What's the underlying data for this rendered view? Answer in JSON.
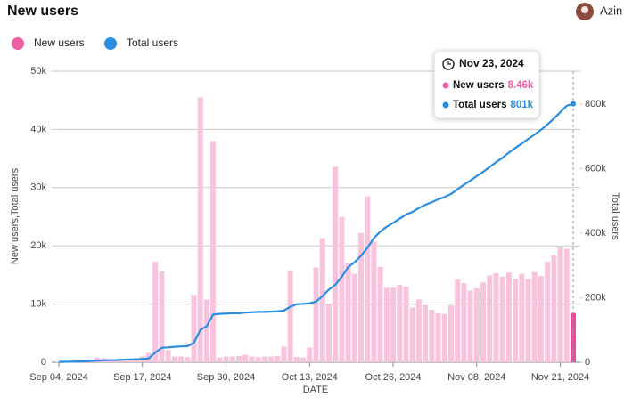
{
  "header": {
    "user": "Azin"
  },
  "chart_data": {
    "type": "bar-line",
    "title": "New users",
    "y_label": "New users,Total users",
    "y2_label": "Total users",
    "x_label": "DATE",
    "categories": [
      "Sep 04, 2024",
      null,
      null,
      null,
      null,
      null,
      null,
      null,
      null,
      null,
      null,
      null,
      null,
      "Sep 17, 2024",
      null,
      null,
      null,
      null,
      null,
      null,
      null,
      null,
      null,
      null,
      null,
      null,
      "Sep 30, 2024",
      null,
      null,
      null,
      null,
      null,
      null,
      null,
      null,
      null,
      null,
      null,
      null,
      "Oct 13, 2024",
      null,
      null,
      null,
      null,
      null,
      null,
      null,
      null,
      null,
      null,
      null,
      null,
      "Oct 26, 2024",
      null,
      null,
      null,
      null,
      null,
      null,
      null,
      null,
      null,
      null,
      null,
      null,
      "Nov 08, 2024",
      null,
      null,
      null,
      null,
      null,
      null,
      null,
      null,
      null,
      null,
      null,
      null,
      "Nov 21, 2024",
      null,
      null
    ],
    "series": [
      {
        "name": "New users",
        "type": "bar",
        "color": "#f8c3dc",
        "legend_color": "#ec5fa2",
        "values": [
          100,
          100,
          100,
          200,
          300,
          300,
          800,
          700,
          300,
          400,
          500,
          500,
          700,
          1000,
          1600,
          17300,
          15600,
          2100,
          1000,
          1000,
          900,
          11600,
          45500,
          10800,
          38000,
          800,
          1000,
          1000,
          1100,
          1300,
          1000,
          900,
          1000,
          1000,
          1100,
          2700,
          15800,
          900,
          800,
          2500,
          16300,
          21300,
          10000,
          33600,
          25000,
          17000,
          15200,
          22200,
          28500,
          20700,
          16400,
          12800,
          12800,
          13300,
          13000,
          9400,
          10800,
          9800,
          9000,
          8400,
          8300,
          9800,
          14200,
          13600,
          12300,
          12700,
          13700,
          14900,
          15300,
          14700,
          15400,
          14300,
          15200,
          14300,
          15500,
          14800,
          17300,
          18400,
          19700,
          19500,
          8460
        ]
      },
      {
        "name": "Total users",
        "type": "line",
        "axis": "y2",
        "color": "#2a8de0",
        "values": [
          1000,
          1500,
          2000,
          2500,
          3000,
          4000,
          5000,
          6000,
          6500,
          7000,
          8000,
          8500,
          9000,
          10000,
          12000,
          30000,
          45000,
          46000,
          48000,
          49000,
          50000,
          60000,
          100000,
          112000,
          148000,
          150000,
          151000,
          152000,
          152000,
          154000,
          155000,
          156000,
          156000,
          157000,
          158000,
          160000,
          172000,
          180000,
          181000,
          183000,
          188000,
          205000,
          225000,
          240000,
          265000,
          295000,
          310000,
          330000,
          355000,
          385000,
          405000,
          420000,
          432000,
          445000,
          458000,
          466000,
          478000,
          488000,
          496000,
          505000,
          512000,
          522000,
          536000,
          550000,
          563000,
          577000,
          590000,
          605000,
          620000,
          634000,
          650000,
          664000,
          678000,
          692000,
          706000,
          720000,
          737000,
          755000,
          775000,
          795000,
          801000
        ]
      }
    ],
    "selected_index": 80,
    "selected_color": "#e64d96",
    "ylim": [
      0,
      50000
    ],
    "yticks": [
      0,
      {
        "value": 10000,
        "label": "10k"
      },
      {
        "value": 20000,
        "label": "20k"
      },
      {
        "value": 30000,
        "label": "30k"
      },
      {
        "value": 40000,
        "label": "40k"
      },
      {
        "value": 50000,
        "label": "50k"
      }
    ],
    "y2lim": [
      0,
      902000
    ],
    "y2ticks": [
      0,
      {
        "value": 200000,
        "label": "200k"
      },
      {
        "value": 400000,
        "label": "400k"
      },
      {
        "value": 600000,
        "label": "600k"
      },
      {
        "value": 800000,
        "label": "800k"
      }
    ],
    "grid": true,
    "tooltip": {
      "date": "Nov 23, 2024",
      "rows": [
        {
          "name": "New users",
          "label": "8.46k"
        },
        {
          "name": "Total users",
          "label": "801k"
        }
      ]
    }
  }
}
